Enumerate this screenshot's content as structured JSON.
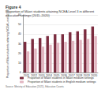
{
  "chart_data": {
    "type": "bar",
    "title": "Figure 4",
    "subtitle": "Proportion of Māori students attaining NCEA Level 3 in different education settings (2011–2020)",
    "y_label": "Proportion of Māori students attaining NCEA Level 3 (%)",
    "source": "Source: Ministry of Education (2021), Education Counts",
    "categories": [
      "2011",
      "2012",
      "2013",
      "2014",
      "2015",
      "2016",
      "2017",
      "2018",
      "2019",
      "2020"
    ],
    "series": [
      {
        "name": "Proportion of Māori students in Māori medium settings",
        "color": "#7b2c3f",
        "values": [
          32,
          35,
          36,
          38,
          40,
          40,
          42,
          43,
          45,
          48
        ]
      },
      {
        "name": "Proportion of Māori students in English medium settings",
        "color": "#e2b6c1",
        "values": [
          22,
          25,
          27,
          29,
          31,
          32,
          33,
          34,
          35,
          38
        ]
      }
    ],
    "ylim": [
      0,
      60
    ],
    "yticks": [
      0,
      10,
      20,
      30,
      40,
      50,
      60
    ],
    "grid": true,
    "legend": "bottom"
  }
}
